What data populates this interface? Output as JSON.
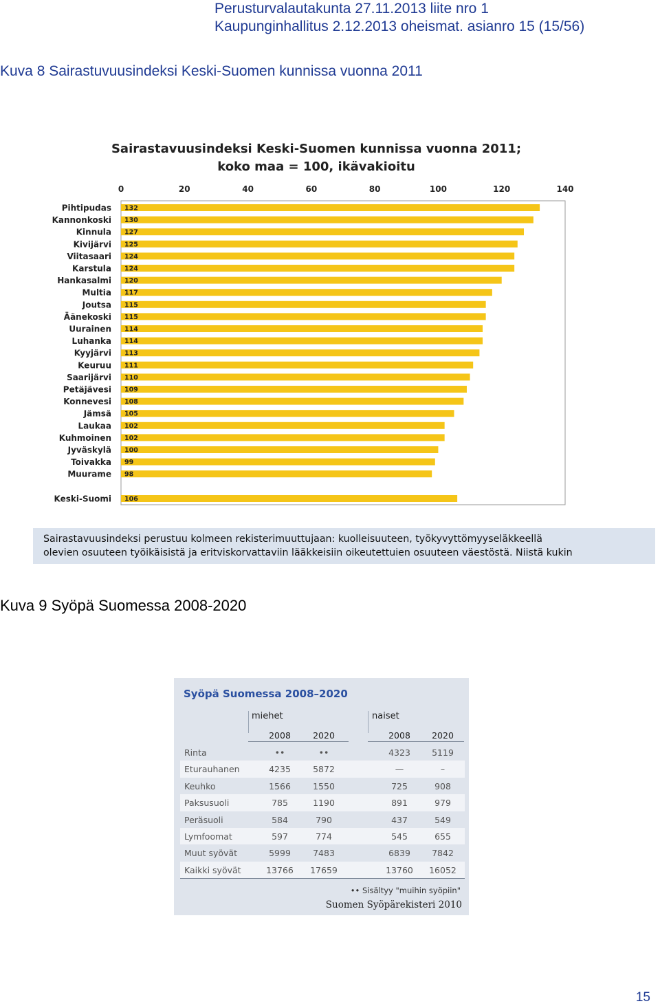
{
  "header": {
    "line1": "Perusturvalautakunta 27.11.2013 liite nro 1",
    "line2": "Kaupunginhallitus 2.12.2013 oheismat. asianro 15 (15/56)"
  },
  "figure8": {
    "caption": "Kuva 8 Sairastuvuusindeksi Keski-Suomen kunnissa vuonna 2011"
  },
  "chart_data": {
    "type": "bar",
    "orientation": "horizontal",
    "title": "Sairastavuusindeksi  Keski-Suomen kunnissa vuonna  2011;",
    "subtitle": "koko maa = 100, ikävakioitu",
    "xlim": [
      0,
      140
    ],
    "xticks": [
      0,
      20,
      40,
      60,
      80,
      100,
      120,
      140
    ],
    "grid": false,
    "bar_color": "#f5c518",
    "categories": [
      "Pihtipudas",
      "Kannonkoski",
      "Kinnula",
      "Kivijärvi",
      "Viitasaari",
      "Karstula",
      "Hankasalmi",
      "Multia",
      "Joutsa",
      "Äänekoski",
      "Uurainen",
      "Luhanka",
      "Kyyjärvi",
      "Keuruu",
      "Saarijärvi",
      "Petäjävesi",
      "Konnevesi",
      "Jämsä",
      "Laukaa",
      "Kuhmoinen",
      "Jyväskylä",
      "Toivakka",
      "Muurame",
      "Keski-Suomi"
    ],
    "values": [
      132,
      130,
      127,
      125,
      124,
      124,
      120,
      117,
      115,
      115,
      114,
      114,
      113,
      111,
      110,
      109,
      108,
      105,
      102,
      102,
      100,
      99,
      98,
      106
    ]
  },
  "explanation": {
    "line1": "Sairastavuusindeksi perustuu kolmeen rekisterimuuttujaan: kuolleisuuteen, työkyvyttömyyseläkkeellä",
    "line2": "olevien osuuteen työikäisistä ja eritviskorvattaviin lääkkeisiin oikeutettuien osuuteen väestöstä. Niistä kukin"
  },
  "figure9": {
    "caption": "Kuva 9 Syöpä Suomessa 2008-2020"
  },
  "cancer_table": {
    "title": "Syöpä Suomessa 2008–2020",
    "group_men": "miehet",
    "group_women": "naiset",
    "years": [
      "2008",
      "2020",
      "2008",
      "2020"
    ],
    "rows": [
      {
        "label": "Rinta",
        "m2008": "••",
        "m2020": "••",
        "n2008": "4323",
        "n2020": "5119"
      },
      {
        "label": "Eturauhanen",
        "m2008": "4235",
        "m2020": "5872",
        "n2008": "—",
        "n2020": "–"
      },
      {
        "label": "Keuhko",
        "m2008": "1566",
        "m2020": "1550",
        "n2008": "725",
        "n2020": "908"
      },
      {
        "label": "Paksusuoli",
        "m2008": "785",
        "m2020": "1190",
        "n2008": "891",
        "n2020": "979"
      },
      {
        "label": "Peräsuoli",
        "m2008": "584",
        "m2020": "790",
        "n2008": "437",
        "n2020": "549"
      },
      {
        "label": "Lymfoomat",
        "m2008": "597",
        "m2020": "774",
        "n2008": "545",
        "n2020": "655"
      },
      {
        "label": "Muut syövät",
        "m2008": "5999",
        "m2020": "7483",
        "n2008": "6839",
        "n2020": "7842"
      },
      {
        "label": "Kaikki syövät",
        "m2008": "13766",
        "m2020": "17659",
        "n2008": "13760",
        "n2020": "16052"
      }
    ],
    "note": "•• Sisältyy \"muihin syöpiin\"",
    "source": "Suomen Syöpärekisteri 2010"
  },
  "page_number": "15"
}
